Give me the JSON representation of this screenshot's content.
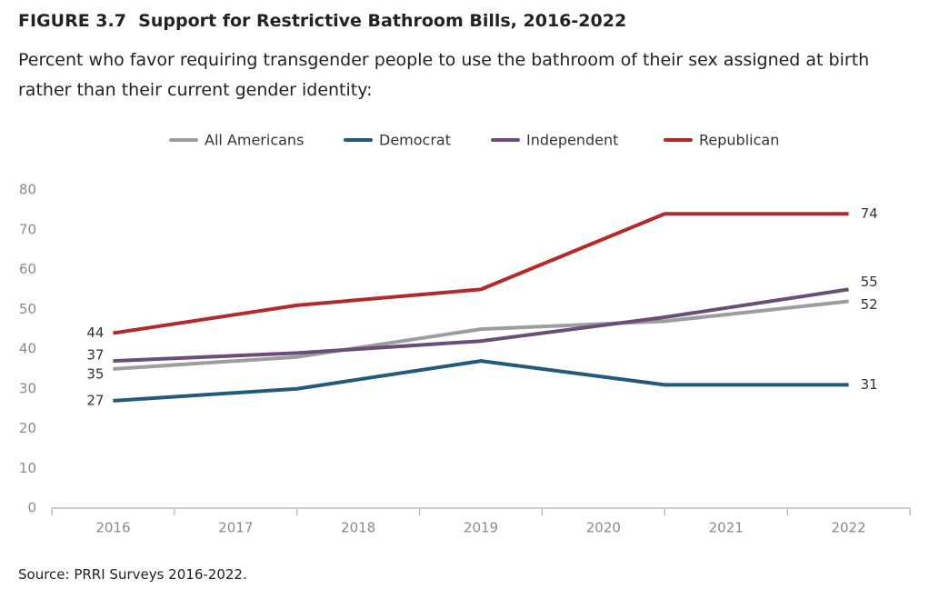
{
  "chart_data": {
    "type": "line",
    "title": "FIGURE 3.7  Support for Restrictive Bathroom Bills, 2016-2022",
    "subtitle": "Percent who favor requiring transgender people to use the bathroom of their sex assigned at birth rather than their current gender identity:",
    "source": "Source: PRRI Surveys 2016-2022.",
    "x": [
      2016,
      2017.5,
      2019,
      2020.5,
      2022
    ],
    "xlim": [
      2015.5,
      2022.5
    ],
    "xticks": [
      2016,
      2017,
      2018,
      2019,
      2020,
      2021,
      2022
    ],
    "ylim": [
      0,
      80
    ],
    "yticks": [
      0,
      10,
      20,
      30,
      40,
      50,
      60,
      70,
      80
    ],
    "grid": false,
    "legend": "top",
    "series": [
      {
        "name": "All Americans",
        "color": "#9d9d9d",
        "values": [
          35,
          38,
          45,
          47,
          52
        ]
      },
      {
        "name": "Democrat",
        "color": "#215a7d",
        "values": [
          27,
          30,
          37,
          31,
          31
        ]
      },
      {
        "name": "Independent",
        "color": "#6c4d78",
        "values": [
          37,
          39,
          42,
          48,
          55
        ]
      },
      {
        "name": "Republican",
        "color": "#b22a2a",
        "values": [
          44,
          51,
          55,
          74,
          74
        ]
      }
    ]
  }
}
